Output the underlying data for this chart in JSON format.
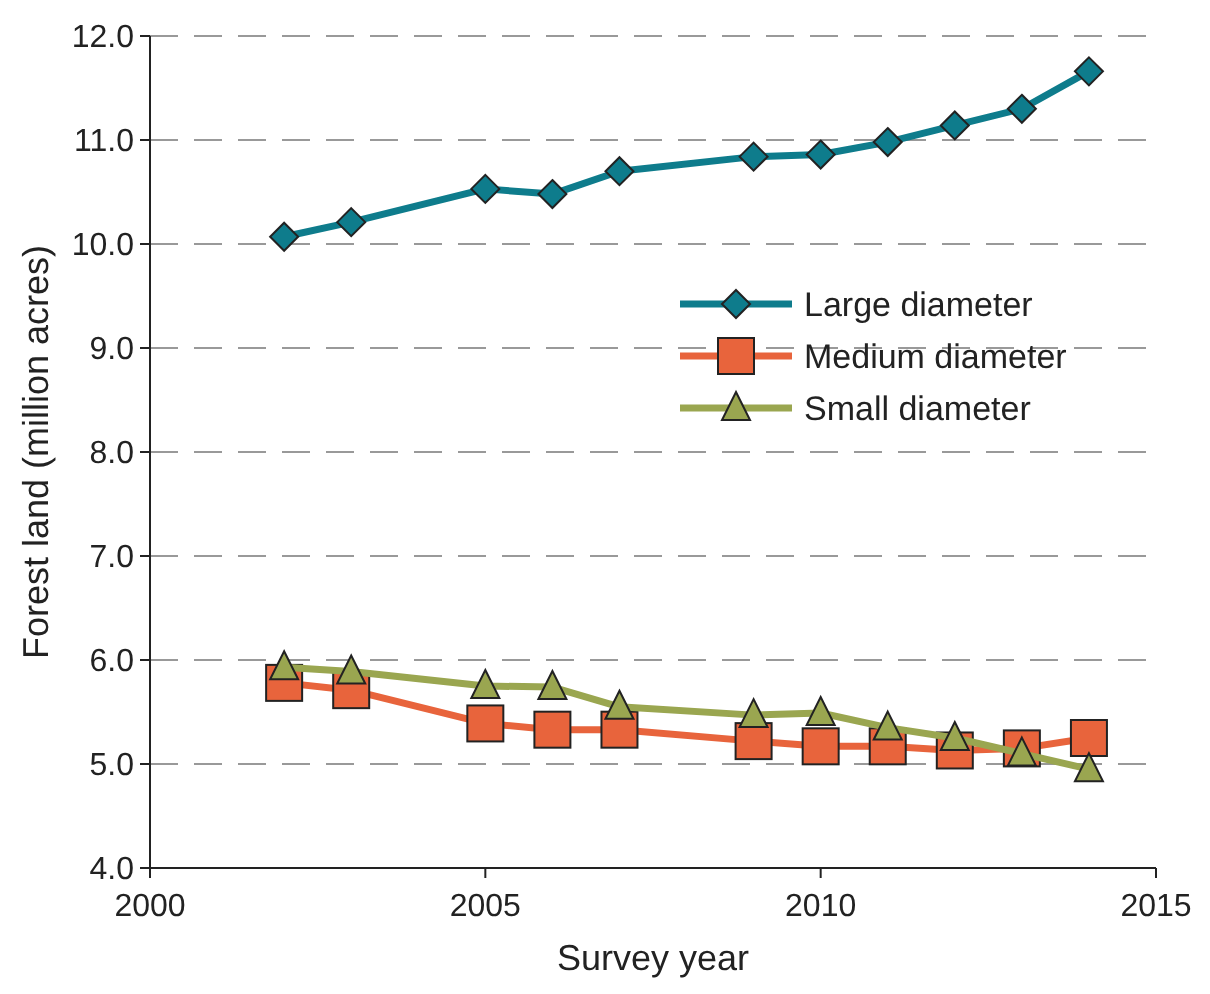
{
  "chart_data": {
    "type": "line",
    "xlabel": "Survey year",
    "ylabel": "Forest land (million acres)",
    "x": [
      2002,
      2003,
      2005,
      2006,
      2007,
      2009,
      2010,
      2011,
      2012,
      2013,
      2014
    ],
    "series": [
      {
        "name": "Large diameter",
        "color": "#0e7c8c",
        "marker": "diamond",
        "values": [
          10.07,
          10.21,
          10.53,
          10.48,
          10.7,
          10.84,
          10.86,
          10.98,
          11.14,
          11.3,
          11.66
        ]
      },
      {
        "name": "Medium diameter",
        "color": "#e8643c",
        "marker": "square",
        "values": [
          5.78,
          5.71,
          5.39,
          5.33,
          5.33,
          5.22,
          5.17,
          5.17,
          5.13,
          5.15,
          5.25
        ]
      },
      {
        "name": "Small diameter",
        "color": "#9aa650",
        "marker": "triangle",
        "values": [
          5.93,
          5.89,
          5.75,
          5.74,
          5.55,
          5.47,
          5.49,
          5.35,
          5.25,
          5.1,
          4.95
        ]
      }
    ],
    "xlim": [
      2000,
      2015
    ],
    "xticks": [
      2000,
      2005,
      2010,
      2015
    ],
    "ylim": [
      4,
      12
    ],
    "yticks": [
      {
        "value": 4,
        "label": "4.0"
      },
      {
        "value": 5,
        "label": "5.0"
      },
      {
        "value": 6,
        "label": "6.0"
      },
      {
        "value": 7,
        "label": "7.0"
      },
      {
        "value": 8,
        "label": "8.0"
      },
      {
        "value": 9,
        "label": "9.0"
      },
      {
        "value": 10,
        "label": "10.0"
      },
      {
        "value": 11,
        "label": "11.0"
      },
      {
        "value": 12,
        "label": "12.0"
      }
    ],
    "grid": "y",
    "legend": "right",
    "line_style": "solid"
  }
}
